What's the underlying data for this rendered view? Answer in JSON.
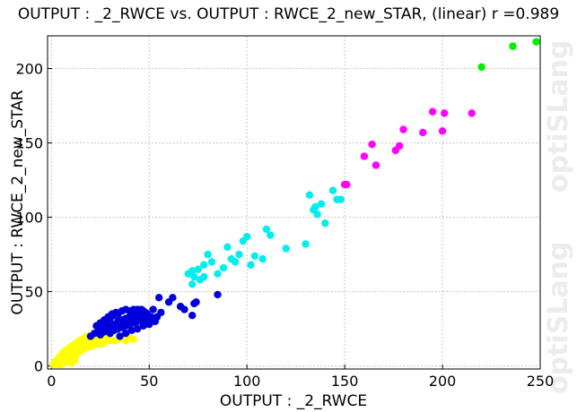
{
  "title": "OUTPUT : _2_RWCE vs. OUTPUT : RWCE_2_new_STAR, (linear) r =0.989",
  "watermark": "optiSLang",
  "chart_data": {
    "type": "scatter",
    "title": "OUTPUT : _2_RWCE vs. OUTPUT : RWCE_2_new_STAR, (linear) r =0.989",
    "xlabel": "OUTPUT : _2_RWCE",
    "ylabel": "OUTPUT : RWCE_2_new_STAR",
    "xlim": [
      -2,
      250
    ],
    "ylim": [
      -2,
      222
    ],
    "xticks": [
      0,
      50,
      100,
      150,
      200,
      250
    ],
    "yticks": [
      0,
      50,
      100,
      150,
      200
    ],
    "grid": true,
    "legend": "none",
    "series": [
      {
        "color": "#ffff00",
        "points": [
          [
            2,
            2
          ],
          [
            3,
            1
          ],
          [
            4,
            3
          ],
          [
            5,
            5
          ],
          [
            6,
            4
          ],
          [
            7,
            6
          ],
          [
            8,
            8
          ],
          [
            9,
            7
          ],
          [
            10,
            10
          ],
          [
            11,
            9
          ],
          [
            12,
            12
          ],
          [
            13,
            11
          ],
          [
            14,
            13
          ],
          [
            15,
            15
          ],
          [
            16,
            14
          ],
          [
            17,
            16
          ],
          [
            18,
            17
          ],
          [
            19,
            18
          ],
          [
            20,
            17
          ],
          [
            21,
            19
          ],
          [
            22,
            20
          ],
          [
            23,
            18
          ],
          [
            24,
            19
          ],
          [
            25,
            20
          ],
          [
            26,
            17
          ],
          [
            27,
            18
          ],
          [
            28,
            19
          ],
          [
            30,
            18
          ],
          [
            32,
            17
          ],
          [
            34,
            18
          ],
          [
            36,
            19
          ],
          [
            38,
            17
          ],
          [
            40,
            19
          ],
          [
            42,
            18
          ],
          [
            5,
            1
          ],
          [
            7,
            3
          ],
          [
            9,
            4
          ],
          [
            11,
            6
          ],
          [
            13,
            8
          ],
          [
            15,
            10
          ],
          [
            17,
            12
          ],
          [
            19,
            14
          ],
          [
            21,
            15
          ],
          [
            23,
            16
          ],
          [
            25,
            16
          ],
          [
            6,
            9
          ],
          [
            8,
            11
          ],
          [
            10,
            13
          ],
          [
            12,
            15
          ],
          [
            14,
            17
          ],
          [
            16,
            18
          ],
          [
            18,
            20
          ],
          [
            20,
            20
          ],
          [
            3,
            4
          ],
          [
            4,
            6
          ],
          [
            6,
            2
          ],
          [
            8,
            5
          ],
          [
            10,
            6
          ],
          [
            12,
            9
          ],
          [
            14,
            10
          ],
          [
            16,
            11
          ],
          [
            18,
            13
          ],
          [
            20,
            13
          ],
          [
            22,
            14
          ],
          [
            24,
            15
          ],
          [
            26,
            15
          ],
          [
            1,
            1
          ],
          [
            2,
            3
          ],
          [
            4,
            1
          ],
          [
            9,
            10
          ],
          [
            11,
            12
          ],
          [
            13,
            15
          ],
          [
            15,
            17
          ],
          [
            17,
            19
          ],
          [
            19,
            20
          ],
          [
            7,
            10
          ],
          [
            5,
            7
          ],
          [
            10,
            2
          ],
          [
            12,
            4
          ],
          [
            27,
            16
          ],
          [
            29,
            17
          ]
        ]
      },
      {
        "color": "#0000dd",
        "points": [
          [
            20,
            20
          ],
          [
            22,
            22
          ],
          [
            24,
            24
          ],
          [
            25,
            21
          ],
          [
            26,
            25
          ],
          [
            27,
            23
          ],
          [
            28,
            26
          ],
          [
            29,
            24
          ],
          [
            30,
            27
          ],
          [
            31,
            25
          ],
          [
            32,
            28
          ],
          [
            33,
            26
          ],
          [
            34,
            30
          ],
          [
            35,
            28
          ],
          [
            36,
            31
          ],
          [
            37,
            29
          ],
          [
            38,
            32
          ],
          [
            39,
            30
          ],
          [
            40,
            33
          ],
          [
            41,
            31
          ],
          [
            42,
            34
          ],
          [
            43,
            32
          ],
          [
            44,
            35
          ],
          [
            45,
            33
          ],
          [
            46,
            36
          ],
          [
            47,
            34
          ],
          [
            48,
            33
          ],
          [
            49,
            35
          ],
          [
            50,
            31
          ],
          [
            28,
            30
          ],
          [
            30,
            32
          ],
          [
            32,
            34
          ],
          [
            34,
            35
          ],
          [
            36,
            37
          ],
          [
            38,
            38
          ],
          [
            40,
            37
          ],
          [
            42,
            38
          ],
          [
            44,
            38
          ],
          [
            46,
            38
          ],
          [
            48,
            36
          ],
          [
            30,
            22
          ],
          [
            32,
            24
          ],
          [
            34,
            25
          ],
          [
            36,
            26
          ],
          [
            38,
            27
          ],
          [
            40,
            28
          ],
          [
            42,
            29
          ],
          [
            44,
            30
          ],
          [
            46,
            31
          ],
          [
            48,
            29
          ],
          [
            35,
            20
          ],
          [
            38,
            22
          ],
          [
            41,
            24
          ],
          [
            44,
            25
          ],
          [
            47,
            27
          ],
          [
            50,
            28
          ],
          [
            53,
            30
          ],
          [
            56,
            36
          ],
          [
            60,
            43
          ],
          [
            62,
            46
          ],
          [
            66,
            40
          ],
          [
            68,
            38
          ],
          [
            72,
            34
          ],
          [
            74,
            43
          ],
          [
            73,
            42
          ],
          [
            85,
            48
          ],
          [
            55,
            46
          ],
          [
            52,
            38
          ],
          [
            23,
            27
          ],
          [
            25,
            29
          ],
          [
            27,
            31
          ],
          [
            29,
            33
          ],
          [
            31,
            35
          ],
          [
            33,
            36
          ],
          [
            43,
            36
          ],
          [
            45,
            37
          ],
          [
            47,
            37
          ],
          [
            49,
            34
          ],
          [
            51,
            33
          ],
          [
            54,
            33
          ]
        ]
      },
      {
        "color": "#00eeee",
        "points": [
          [
            70,
            62
          ],
          [
            72,
            64
          ],
          [
            73,
            60
          ],
          [
            75,
            65
          ],
          [
            76,
            58
          ],
          [
            78,
            68
          ],
          [
            80,
            75
          ],
          [
            82,
            70
          ],
          [
            85,
            62
          ],
          [
            88,
            66
          ],
          [
            90,
            80
          ],
          [
            92,
            72
          ],
          [
            94,
            70
          ],
          [
            96,
            75
          ],
          [
            98,
            84
          ],
          [
            100,
            87
          ],
          [
            102,
            68
          ],
          [
            104,
            74
          ],
          [
            108,
            72
          ],
          [
            110,
            92
          ],
          [
            112,
            88
          ],
          [
            120,
            79
          ],
          [
            130,
            82
          ],
          [
            132,
            115
          ],
          [
            134,
            105
          ],
          [
            135,
            107
          ],
          [
            136,
            102
          ],
          [
            138,
            109
          ],
          [
            140,
            96
          ],
          [
            144,
            118
          ],
          [
            146,
            112
          ],
          [
            148,
            112
          ],
          [
            72,
            55
          ],
          [
            78,
            60
          ]
        ]
      },
      {
        "color": "#ff00ff",
        "points": [
          [
            150,
            122
          ],
          [
            151,
            122
          ],
          [
            160,
            141
          ],
          [
            164,
            149
          ],
          [
            166,
            135
          ],
          [
            176,
            145
          ],
          [
            178,
            148
          ],
          [
            180,
            159
          ],
          [
            190,
            157
          ],
          [
            195,
            171
          ],
          [
            200,
            158
          ],
          [
            201,
            170
          ],
          [
            215,
            170
          ]
        ]
      },
      {
        "color": "#00ee00",
        "points": [
          [
            220,
            201
          ],
          [
            236,
            215
          ],
          [
            248,
            218
          ]
        ]
      }
    ]
  }
}
